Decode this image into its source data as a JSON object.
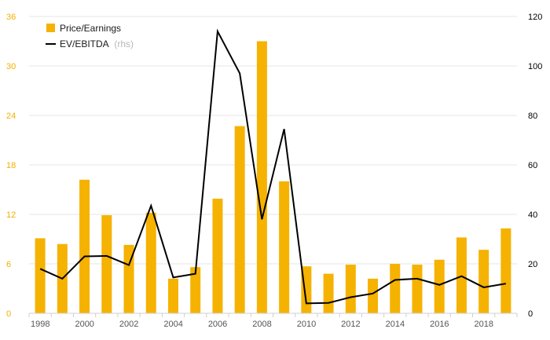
{
  "chart_data": {
    "type": "bar",
    "title": "",
    "xlabel": "",
    "ylabel": "",
    "categories": [
      "1998",
      "1999",
      "2000",
      "2001",
      "2002",
      "2003",
      "2004",
      "2005",
      "2006",
      "2007",
      "2008",
      "2009",
      "2010",
      "2011",
      "2012",
      "2013",
      "2014",
      "2015",
      "2016",
      "2017",
      "2018",
      "2019"
    ],
    "x_tick_labels": [
      "1998",
      "2000",
      "2002",
      "2004",
      "2006",
      "2008",
      "2010",
      "2012",
      "2014",
      "2016",
      "2018"
    ],
    "series": [
      {
        "name": "Price/Earnings",
        "type": "bar",
        "axis": "left",
        "color": "#f5b200",
        "values": [
          9.1,
          8.4,
          16.2,
          11.9,
          8.3,
          12.2,
          4.2,
          5.6,
          13.9,
          22.7,
          33.0,
          16.0,
          5.7,
          4.8,
          5.9,
          4.2,
          6.0,
          5.9,
          6.5,
          9.2,
          7.7,
          10.3
        ]
      },
      {
        "name": "EV/EBITDA",
        "name_suffix": "(rhs)",
        "type": "line",
        "axis": "right",
        "color": "#000000",
        "values": [
          18.0,
          14.0,
          23.0,
          23.2,
          19.5,
          43.5,
          14.5,
          16.0,
          114.0,
          97.0,
          38.0,
          74.5,
          4.0,
          4.2,
          6.5,
          8.0,
          13.5,
          14.0,
          11.5,
          15.0,
          10.5,
          12.0
        ]
      }
    ],
    "ylim": [
      0,
      36
    ],
    "y_ticks": [
      "0",
      "6",
      "12",
      "18",
      "24",
      "30",
      "36"
    ],
    "ylim_right": [
      0,
      120
    ],
    "y_right_ticks": [
      "0",
      "20",
      "40",
      "60",
      "80",
      "100",
      "120"
    ],
    "grid": true,
    "legend_position": "top-left"
  }
}
